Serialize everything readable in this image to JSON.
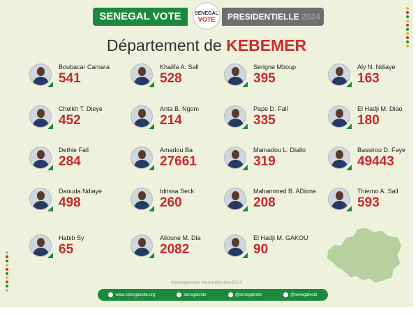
{
  "header": {
    "left_label": "SENEGAL VOTE",
    "logo_line1": "SENEGAL",
    "logo_line2": "VOTE",
    "right_label": "PRESIDENTIELLE",
    "right_year": "2024"
  },
  "title": {
    "prefix": "Département de",
    "department": "KEBEMER"
  },
  "candidates": [
    {
      "name": "Boubacar Camara",
      "votes": "541"
    },
    {
      "name": "Khalifa A. Sall",
      "votes": "528"
    },
    {
      "name": "Serigne Mboup",
      "votes": "395"
    },
    {
      "name": "Aly N. Ndiaye",
      "votes": "163"
    },
    {
      "name": "Cheikh T. Dieye",
      "votes": "452"
    },
    {
      "name": "Anta B. Ngom",
      "votes": "214"
    },
    {
      "name": "Pape D. Fall",
      "votes": "335"
    },
    {
      "name": "El Hadji M. Diao",
      "votes": "180"
    },
    {
      "name": "Dethie Fall",
      "votes": "284"
    },
    {
      "name": "Amadou Ba",
      "votes": "27661"
    },
    {
      "name": "Mamadou L. Diallo",
      "votes": "319"
    },
    {
      "name": "Bassirou D. Faye",
      "votes": "49443"
    },
    {
      "name": "Daouda Ndiaye",
      "votes": "498"
    },
    {
      "name": "Idrissa Seck",
      "votes": "260"
    },
    {
      "name": "Mahammed B. ADione",
      "votes": "208"
    },
    {
      "name": "Thierno A. Sall",
      "votes": "593"
    },
    {
      "name": "Habib Sy",
      "votes": "65"
    },
    {
      "name": "Alioune M. Dia",
      "votes": "2082"
    },
    {
      "name": "El Hadji M. GAKOU",
      "votes": "90"
    }
  ],
  "hashtags": "#senegalvote  #sunuelection2024",
  "footer": {
    "website": "www.senegalvote.org",
    "facebook": "senegalvote",
    "twitter": "@senegalvote",
    "instagram": "@senegalvote"
  },
  "colors": {
    "green": "#1c8a3c",
    "red": "#c8282d",
    "background": "#eef2dc"
  }
}
